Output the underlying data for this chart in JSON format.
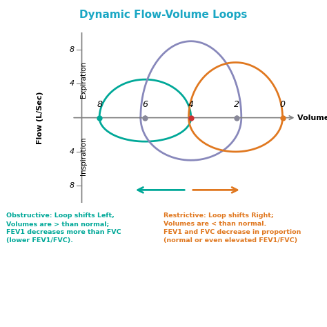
{
  "title": "Dynamic Flow-Volume Loops",
  "title_color": "#1aa7c4",
  "title_fontsize": 11,
  "bg_color": "#ffffff",
  "teal_color": "#00a898",
  "purple_color": "#8888bb",
  "orange_color": "#e07820",
  "axis_label_x": "Volume (L)",
  "axis_label_y": "Flow (L/Sec)",
  "expiration_label": "Expiration",
  "inspiration_label": "Inspiration",
  "x_ticks": [
    8,
    6,
    4,
    2,
    0
  ],
  "obstructive_text": "Obstructive: Loop shifts Left,\nVolumes are > than normal;\nFEV1 decreases more than FVC\n(lower FEV1/FVC).",
  "restrictive_text": "Restrictive: Loop shifts Right;\nVolumes are < than normal.\nFEV1 and FVC decrease in proportion\n(normal or even elevated FEV1/FVC)",
  "obstructive_text_color": "#00a898",
  "restrictive_text_color": "#e07820",
  "dot_colors": [
    "#00a898",
    "#888899",
    "#cc3333",
    "#888899",
    "#e07820"
  ],
  "teal_loop": {
    "tlc": 8.0,
    "rv": 4.0,
    "peak_exp": 4.5,
    "peak_insp": 2.8
  },
  "purple_loop": {
    "tlc": 6.2,
    "rv": 1.8,
    "peak_exp": 9.0,
    "peak_insp": 5.0
  },
  "orange_loop": {
    "tlc": 4.1,
    "rv": 0.0,
    "peak_exp": 6.5,
    "peak_insp": 4.0
  },
  "xlim_left": 9.2,
  "xlim_right": -0.8,
  "ylim_bottom": -10,
  "ylim_top": 10
}
